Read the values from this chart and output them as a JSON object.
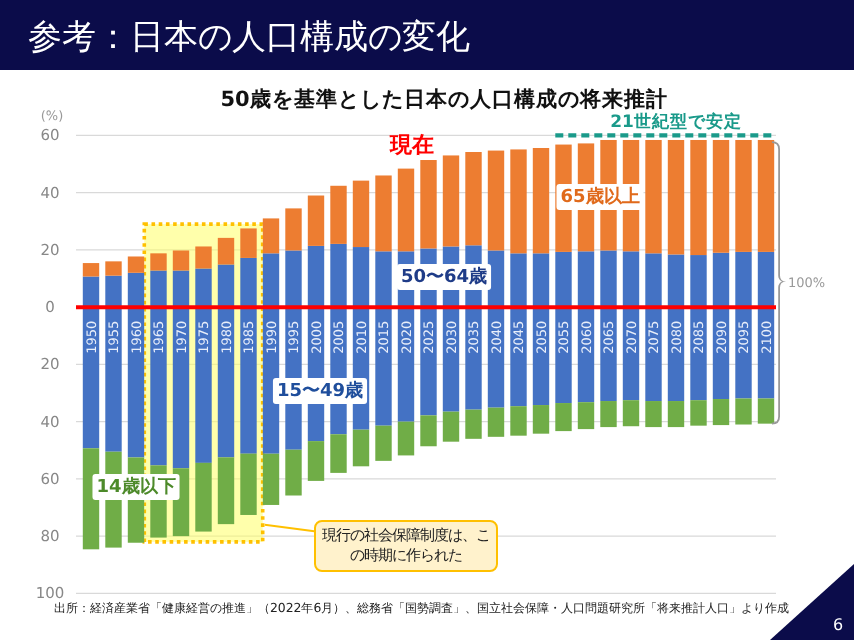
{
  "chart_data": {
    "type": "bar",
    "title": "参考：日本の人口構成の変化",
    "subtitle": "50歳を基準とした日本の人口構成の将来推計",
    "ylabel": "(%)",
    "categories": [
      "1950",
      "1955",
      "1960",
      "1965",
      "1970",
      "1975",
      "1980",
      "1985",
      "1990",
      "1995",
      "2000",
      "2005",
      "2010",
      "2015",
      "2020",
      "2025",
      "2030",
      "2035",
      "2040",
      "2045",
      "2050",
      "2055",
      "2060",
      "2065",
      "2070",
      "2075",
      "2080",
      "2085",
      "2090",
      "2095",
      "2100"
    ],
    "stacked": true,
    "grid": "y",
    "ylim": [
      -100,
      60
    ],
    "yticks": [
      {
        "value": -100,
        "label": "100"
      },
      {
        "value": -80,
        "label": "80"
      },
      {
        "value": -60,
        "label": "60"
      },
      {
        "value": -40,
        "label": "40"
      },
      {
        "value": -20,
        "label": "20"
      },
      0,
      20,
      40,
      60
    ],
    "series": [
      {
        "name": "50〜64歳",
        "color": "#4472c4",
        "values": [
          10.7,
          11,
          12,
          12.8,
          12.8,
          13.5,
          14.9,
          17.2,
          18.8,
          19.8,
          21.4,
          22.1,
          21,
          19.5,
          19.5,
          20.5,
          21.2,
          21.6,
          19.8,
          18.8,
          18.8,
          19.3,
          19.5,
          19.8,
          19.5,
          18.8,
          18.4,
          18.2,
          19,
          19.3,
          19.3
        ]
      },
      {
        "name": "65歳以上",
        "color": "#ed7d31",
        "values": [
          4.7,
          5,
          5.7,
          6,
          7,
          7.7,
          9.3,
          10.3,
          12.2,
          14.7,
          17.6,
          20.3,
          23.2,
          26.5,
          28.9,
          30.9,
          31.8,
          32.6,
          34.9,
          36.3,
          36.8,
          37.5,
          37.7,
          38.6,
          38.9,
          39.6,
          40,
          40.2,
          39.4,
          39.1,
          39.1
        ]
      },
      {
        "name": "15〜49歳",
        "color": "#4472c4",
        "values": [
          -49.3,
          -50.5,
          -52.5,
          -55.3,
          -56.3,
          -54.4,
          -52.5,
          -51.2,
          -51.2,
          -49.8,
          -46.8,
          -44.4,
          -42.8,
          -41.4,
          -40,
          -37.8,
          -36.5,
          -35.8,
          -35.1,
          -34.6,
          -34.2,
          -33.5,
          -33.2,
          -32.8,
          -32.5,
          -32.8,
          -32.8,
          -32.5,
          -32.1,
          -31.9,
          -31.9
        ]
      },
      {
        "name": "14歳以下",
        "color": "#70ad47",
        "values": [
          -35.3,
          -33.5,
          -29.8,
          -25.2,
          -23.7,
          -24,
          -23.3,
          -21.4,
          -17.9,
          -16,
          -13.9,
          -13.5,
          -12.8,
          -12.3,
          -11.8,
          -10.8,
          -10.5,
          -10.2,
          -10.2,
          -10.3,
          -10,
          -9.8,
          -9.4,
          -9.1,
          -9.1,
          -9.1,
          -9.1,
          -8.9,
          -9.1,
          -9.1,
          -8.8
        ]
      }
    ],
    "bands": [
      {
        "axis": "x",
        "from": "1965",
        "to": "1985",
        "label": "現行の社会保障制度は、この時期に作られた",
        "color": "#ffff66"
      }
    ],
    "annotations": [
      "現在",
      {
        "text": "21世紀型で安定",
        "x": "2080",
        "y": 60
      },
      "100%",
      "出所：経済産業省「健康経営の推進」（2022年6月）、総務省「国勢調査」、国立社会保障・人口問題研究所「将来推計人口」より作成",
      "6"
    ]
  }
}
